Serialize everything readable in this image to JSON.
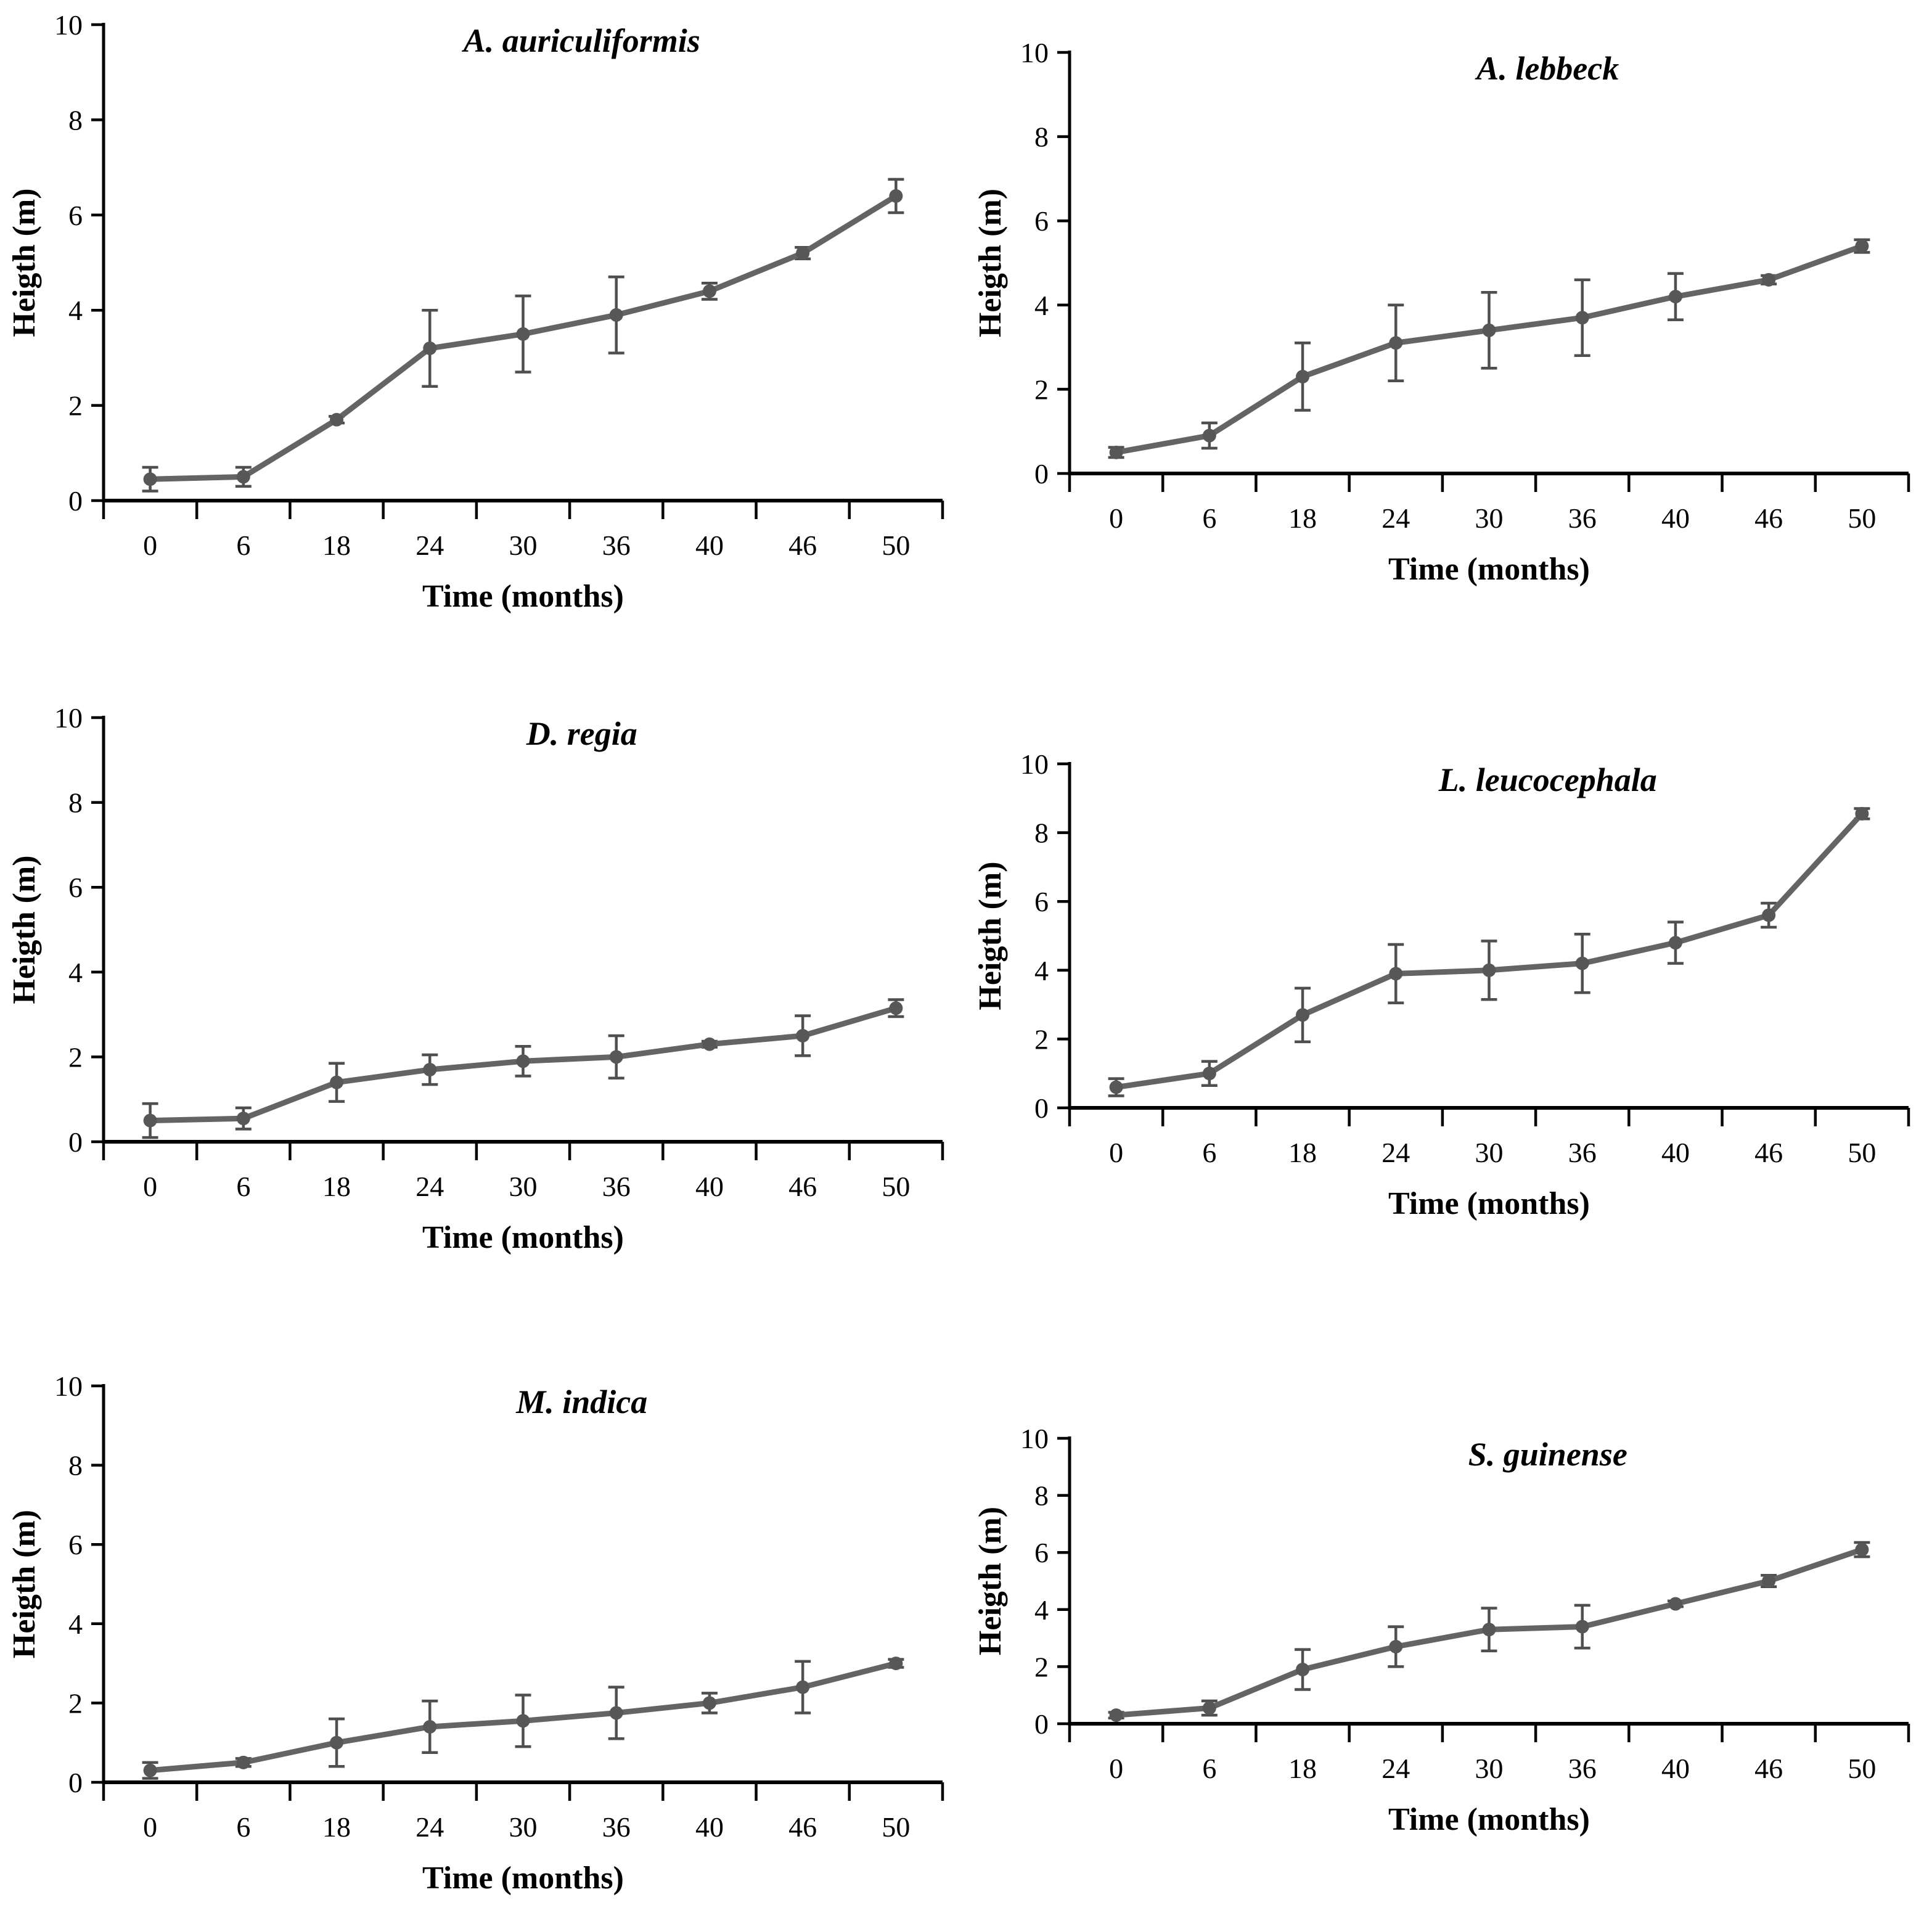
{
  "page": {
    "background": "#ffffff"
  },
  "style": {
    "series_color": "#646464",
    "marker_color": "#575757",
    "error_bar_color": "#4f4f4f",
    "axis_color": "#000000",
    "text_color": "#000000"
  },
  "chart_data": [
    {
      "type": "line",
      "title": "A. auriculiformis",
      "xlabel": "Time (months)",
      "ylabel": "Heigth (m)",
      "categories": [
        "0",
        "6",
        "18",
        "24",
        "30",
        "36",
        "40",
        "46",
        "50"
      ],
      "values": [
        0.45,
        0.5,
        1.7,
        3.2,
        3.5,
        3.9,
        4.4,
        5.2,
        6.4
      ],
      "errors": [
        0.25,
        0.2,
        0.07,
        0.8,
        0.8,
        0.8,
        0.17,
        0.12,
        0.35
      ],
      "ylim": [
        0,
        10
      ],
      "yticks": [
        0,
        2,
        4,
        6,
        8,
        10
      ],
      "grid": false,
      "legend": false,
      "marker": "circle"
    },
    {
      "type": "line",
      "title": "A. lebbeck",
      "xlabel": "Time (months)",
      "ylabel": "Heigth (m)",
      "categories": [
        "0",
        "6",
        "18",
        "24",
        "30",
        "36",
        "40",
        "46",
        "50"
      ],
      "values": [
        0.5,
        0.9,
        2.3,
        3.1,
        3.4,
        3.7,
        4.2,
        4.6,
        5.4
      ],
      "errors": [
        0.12,
        0.3,
        0.8,
        0.9,
        0.9,
        0.9,
        0.55,
        0.1,
        0.15
      ],
      "ylim": [
        0,
        10
      ],
      "yticks": [
        0,
        2,
        4,
        6,
        8,
        10
      ],
      "grid": false,
      "legend": false,
      "marker": "circle"
    },
    {
      "type": "line",
      "title": "D. regia",
      "xlabel": "Time (months)",
      "ylabel": "Heigth (m)",
      "categories": [
        "0",
        "6",
        "18",
        "24",
        "30",
        "36",
        "40",
        "46",
        "50"
      ],
      "values": [
        0.5,
        0.55,
        1.4,
        1.7,
        1.9,
        2.0,
        2.3,
        2.5,
        3.15
      ],
      "errors": [
        0.4,
        0.25,
        0.45,
        0.35,
        0.35,
        0.5,
        0.07,
        0.47,
        0.2
      ],
      "ylim": [
        0,
        10
      ],
      "yticks": [
        0,
        2,
        4,
        6,
        8,
        10
      ],
      "grid": false,
      "legend": false,
      "marker": "circle"
    },
    {
      "type": "line",
      "title": "L. leucocephala",
      "xlabel": "Time (months)",
      "ylabel": "Heigth (m)",
      "categories": [
        "0",
        "6",
        "18",
        "24",
        "30",
        "36",
        "40",
        "46",
        "50"
      ],
      "values": [
        0.6,
        1.0,
        2.7,
        3.9,
        4.0,
        4.2,
        4.8,
        5.6,
        8.55
      ],
      "errors": [
        0.25,
        0.35,
        0.78,
        0.85,
        0.85,
        0.85,
        0.6,
        0.35,
        0.15
      ],
      "ylim": [
        0,
        10
      ],
      "yticks": [
        0,
        2,
        4,
        6,
        8,
        10
      ],
      "grid": false,
      "legend": false,
      "marker": "circle"
    },
    {
      "type": "line",
      "title": "M. indica",
      "xlabel": "Time (months)",
      "ylabel": "Heigth (m)",
      "categories": [
        "0",
        "6",
        "18",
        "24",
        "30",
        "36",
        "40",
        "46",
        "50"
      ],
      "values": [
        0.3,
        0.5,
        1.0,
        1.4,
        1.55,
        1.75,
        2.0,
        2.4,
        3.0
      ],
      "errors": [
        0.2,
        0.1,
        0.6,
        0.65,
        0.65,
        0.65,
        0.25,
        0.65,
        0.1
      ],
      "ylim": [
        0,
        10
      ],
      "yticks": [
        0,
        2,
        4,
        6,
        8,
        10
      ],
      "grid": false,
      "legend": false,
      "marker": "circle"
    },
    {
      "type": "line",
      "title": "S. guinense",
      "xlabel": "Time (months)",
      "ylabel": "Heigth (m)",
      "categories": [
        "0",
        "6",
        "18",
        "24",
        "30",
        "36",
        "40",
        "46",
        "50"
      ],
      "values": [
        0.3,
        0.55,
        1.9,
        2.7,
        3.3,
        3.4,
        4.2,
        5.0,
        6.1
      ],
      "errors": [
        0.1,
        0.25,
        0.7,
        0.7,
        0.75,
        0.75,
        0.1,
        0.2,
        0.25
      ],
      "ylim": [
        0,
        10
      ],
      "yticks": [
        0,
        2,
        4,
        6,
        8,
        10
      ],
      "grid": false,
      "legend": false,
      "marker": "circle"
    }
  ]
}
